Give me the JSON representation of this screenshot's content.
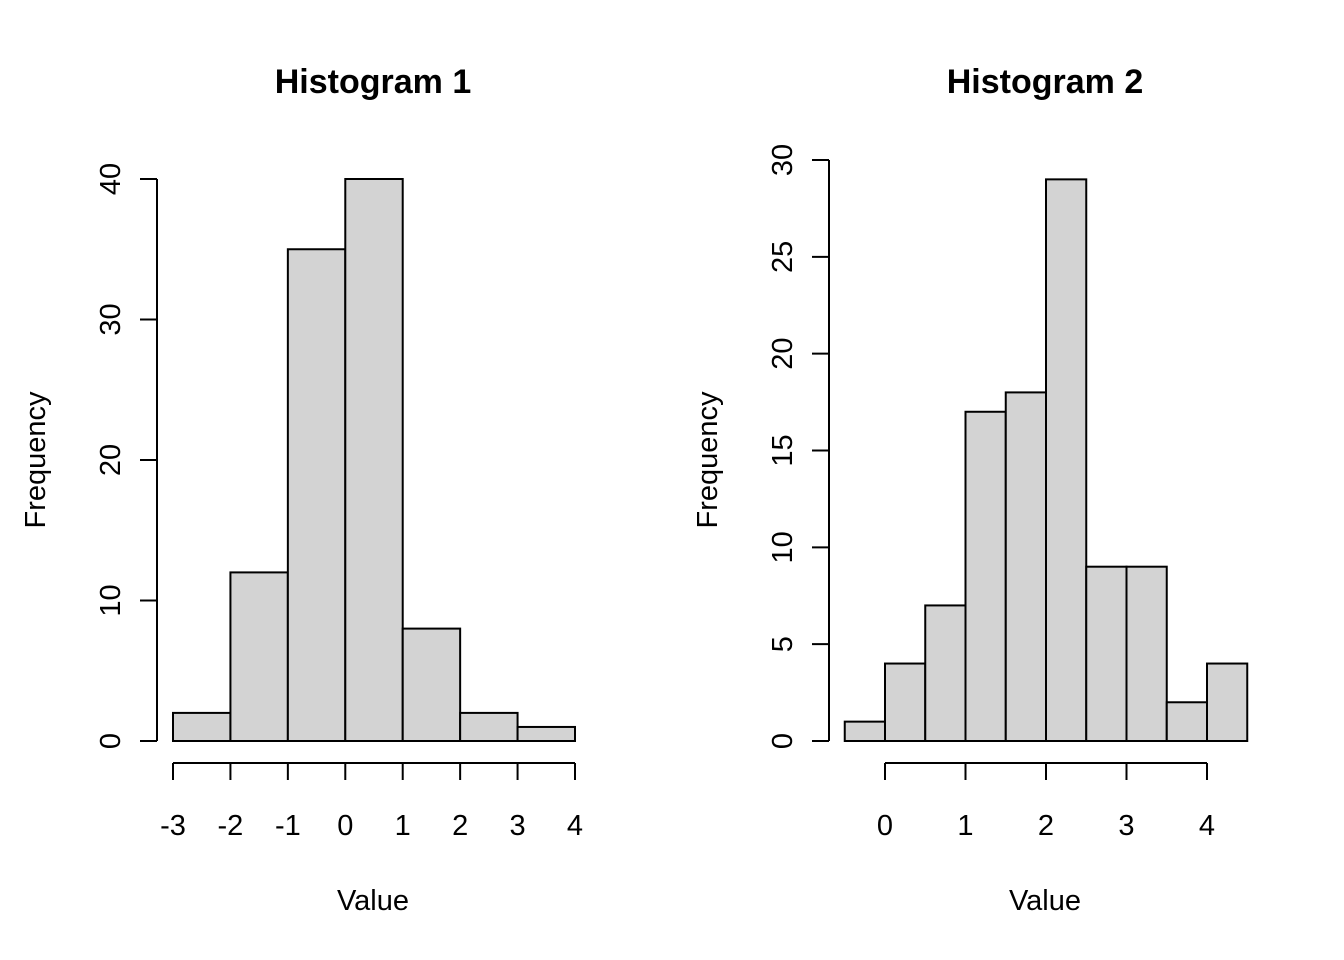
{
  "chart_data": [
    {
      "type": "bar",
      "title": "Histogram 1",
      "xlabel": "Value",
      "ylabel": "Frequency",
      "bin_edges": [
        -3,
        -2,
        -1,
        0,
        1,
        2,
        3,
        4
      ],
      "values": [
        2,
        12,
        35,
        40,
        8,
        2,
        1
      ],
      "x_ticks": [
        -3,
        -2,
        -1,
        0,
        1,
        2,
        3,
        4
      ],
      "y_ticks": [
        0,
        10,
        20,
        30,
        40
      ],
      "xlim": [
        -3,
        4
      ],
      "ylim": [
        0,
        40
      ],
      "bar_color": "#d3d3d3",
      "grid": false
    },
    {
      "type": "bar",
      "title": "Histogram 2",
      "xlabel": "Value",
      "ylabel": "Frequency",
      "bin_edges": [
        -0.5,
        0,
        0.5,
        1,
        1.5,
        2,
        2.5,
        3,
        3.5,
        4,
        4.5
      ],
      "values": [
        1,
        4,
        7,
        17,
        18,
        29,
        9,
        9,
        2,
        4
      ],
      "x_ticks": [
        0,
        1,
        2,
        3,
        4
      ],
      "y_ticks": [
        0,
        5,
        10,
        15,
        20,
        25,
        30
      ],
      "xlim": [
        0,
        4
      ],
      "ylim": [
        0,
        30
      ],
      "bar_color": "#d3d3d3",
      "grid": false
    }
  ]
}
